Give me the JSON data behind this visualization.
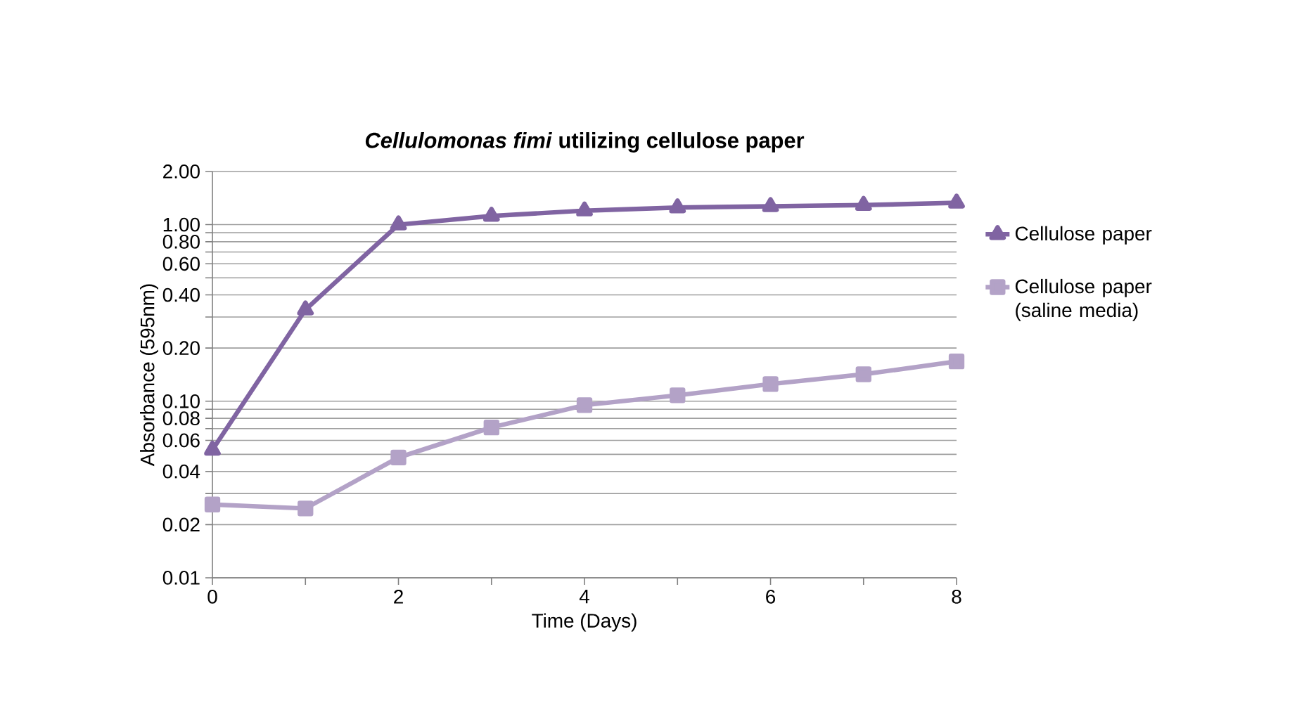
{
  "chart_data": {
    "type": "line",
    "title": "*Cellulomonas fimi* utilizing cellulose paper",
    "xlabel": "Time (Days)",
    "ylabel": "Absorbance (595nm)",
    "x": [
      0,
      1,
      2,
      3,
      4,
      5,
      6,
      7,
      8
    ],
    "series": [
      {
        "name": "Cellulose paper",
        "color": "#8064a2",
        "marker": "triangle",
        "values": [
          0.053,
          0.33,
          1.0,
          1.12,
          1.2,
          1.25,
          1.27,
          1.29,
          1.33
        ]
      },
      {
        "name": "Cellulose paper (saline media)",
        "color": "#b3a2c7",
        "marker": "square",
        "values": [
          0.026,
          0.0247,
          0.048,
          0.071,
          0.095,
          0.108,
          0.125,
          0.142,
          0.168
        ]
      }
    ],
    "log": "y",
    "xlim": [
      0,
      8
    ],
    "xticks": [
      0,
      2,
      4,
      6,
      8
    ],
    "ylim": [
      0.01,
      2
    ],
    "yticks": [
      {
        "value": 0.01,
        "label": "0.01"
      },
      {
        "value": 0.02,
        "label": "0.02"
      },
      {
        "value": 0.03,
        "label": null
      },
      {
        "value": 0.04,
        "label": "0.04"
      },
      {
        "value": 0.05,
        "label": null
      },
      {
        "value": 0.06,
        "label": "0.06"
      },
      {
        "value": 0.07,
        "label": null
      },
      {
        "value": 0.08,
        "label": "0.08"
      },
      {
        "value": 0.09,
        "label": null
      },
      {
        "value": 0.1,
        "label": "0.10"
      },
      {
        "value": 0.2,
        "label": "0.20"
      },
      {
        "value": 0.3,
        "label": null
      },
      {
        "value": 0.4,
        "label": "0.40"
      },
      {
        "value": 0.5,
        "label": null
      },
      {
        "value": 0.6,
        "label": "0.60"
      },
      {
        "value": 0.7,
        "label": null
      },
      {
        "value": 0.8,
        "label": "0.80"
      },
      {
        "value": 0.9,
        "label": null
      },
      {
        "value": 1,
        "label": "1.00"
      },
      {
        "value": 2,
        "label": "2.00"
      }
    ],
    "grid": "y",
    "legend": "right",
    "line_style": "solid"
  }
}
